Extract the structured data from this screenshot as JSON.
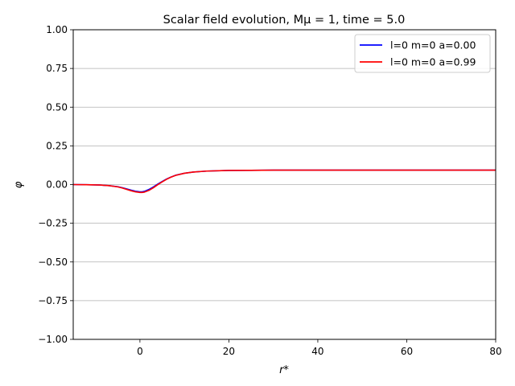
{
  "chart_data": {
    "type": "line",
    "title": "Scalar field evolution, Mμ = 1, time = 5.0",
    "xlabel": "r*",
    "ylabel": "φ",
    "xlim": [
      -15,
      80
    ],
    "ylim": [
      -1.0,
      1.0
    ],
    "xticks": [
      0,
      20,
      40,
      60,
      80
    ],
    "xtick_labels": [
      "0",
      "20",
      "40",
      "60",
      "80"
    ],
    "yticks": [
      -1.0,
      -0.75,
      -0.5,
      -0.25,
      0.0,
      0.25,
      0.5,
      0.75,
      1.0
    ],
    "ytick_labels": [
      "−1.00",
      "−0.75",
      "−0.50",
      "−0.25",
      "0.00",
      "0.25",
      "0.50",
      "0.75",
      "1.00"
    ],
    "grid": "horizontal",
    "legend_position": "top-right",
    "series": [
      {
        "name": "l=0 m=0 a=0.00",
        "color": "#0000ff",
        "x": [
          -15,
          -12,
          -9,
          -7,
          -5,
          -4,
          -3,
          -2,
          -1,
          0,
          0.5,
          1,
          2,
          3,
          4,
          5,
          6,
          7,
          8,
          10,
          12,
          15,
          20,
          25,
          30,
          40,
          50,
          60,
          70,
          80
        ],
        "y": [
          0.0,
          -0.001,
          -0.003,
          -0.007,
          -0.014,
          -0.02,
          -0.028,
          -0.036,
          -0.043,
          -0.047,
          -0.047,
          -0.044,
          -0.032,
          -0.016,
          0.003,
          0.02,
          0.036,
          0.049,
          0.06,
          0.073,
          0.081,
          0.087,
          0.091,
          0.092,
          0.093,
          0.093,
          0.093,
          0.093,
          0.093,
          0.093
        ]
      },
      {
        "name": "l=0 m=0 a=0.99",
        "color": "#ff0000",
        "x": [
          -15,
          -12,
          -9,
          -7,
          -5,
          -4,
          -3,
          -2,
          -1,
          0,
          0.5,
          1,
          2,
          3,
          4,
          5,
          6,
          7,
          8,
          10,
          12,
          15,
          20,
          25,
          30,
          40,
          50,
          60,
          70,
          80
        ],
        "y": [
          0.0,
          -0.001,
          -0.003,
          -0.007,
          -0.015,
          -0.022,
          -0.031,
          -0.04,
          -0.047,
          -0.051,
          -0.051,
          -0.049,
          -0.038,
          -0.021,
          -0.001,
          0.017,
          0.034,
          0.048,
          0.059,
          0.073,
          0.081,
          0.087,
          0.091,
          0.092,
          0.093,
          0.093,
          0.093,
          0.093,
          0.093,
          0.093
        ]
      }
    ]
  }
}
